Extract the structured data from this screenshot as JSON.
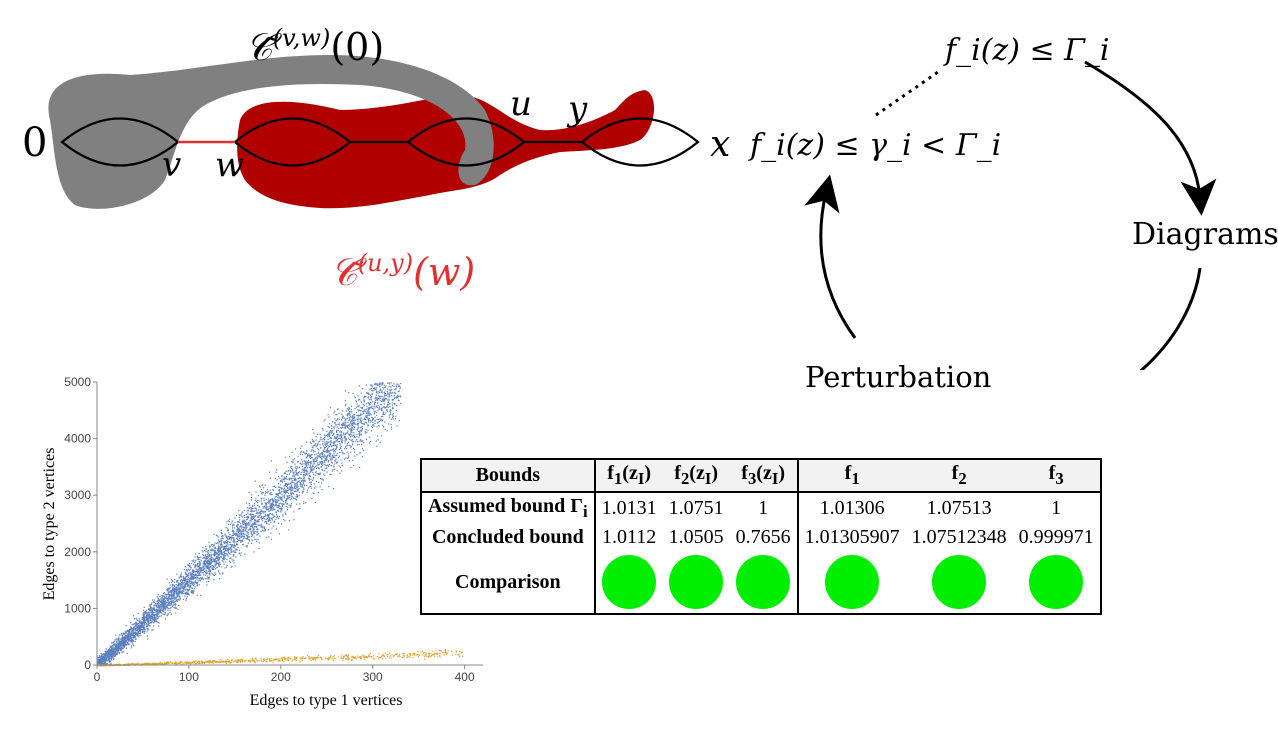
{
  "colors": {
    "gray_blob": "#808080",
    "red_blob": "#b00000",
    "red_label": "#e03030",
    "blue_points": "#5b7fbf",
    "orange_points": "#e0a030",
    "green_bullet": "#00ee00"
  },
  "top_diagram": {
    "label_gray": "𝒞̃",
    "label_gray_sup": "(v,w)",
    "label_gray_arg": "(0)",
    "label_red": "𝒞̃",
    "label_red_sup": "(u,y)",
    "label_red_arg": "(w)",
    "vertex_0": "0",
    "vertex_v": "v",
    "vertex_w": "w",
    "vertex_u": "u",
    "vertex_y": "y",
    "vertex_x": "x"
  },
  "cycle": {
    "top_label": "f_i(z) ≤ Γ_i",
    "left_label": "f_i(z) ≤ γ_i < Γ_i",
    "right_label": "Diagrams",
    "bottom_label": "Perturbation"
  },
  "chart_data": {
    "type": "scatter",
    "xlabel": "Edges to type 1 vertices",
    "ylabel": "Edges to type 2 vertices",
    "xlim": [
      0,
      420
    ],
    "ylim": [
      0,
      5000
    ],
    "xticks": [
      "0",
      "100",
      "200",
      "300",
      "400"
    ],
    "yticks": [
      "0",
      "1000",
      "2000",
      "3000",
      "4000",
      "5000"
    ],
    "series": [
      {
        "color": "blue",
        "trend": [
          [
            0,
            0
          ],
          [
            100,
            1500
          ],
          [
            200,
            3000
          ],
          [
            300,
            4600
          ],
          [
            330,
            5000
          ]
        ],
        "spread": 250
      },
      {
        "color": "orange",
        "trend": [
          [
            0,
            0
          ],
          [
            100,
            50
          ],
          [
            200,
            110
          ],
          [
            300,
            160
          ],
          [
            400,
            220
          ]
        ],
        "spread": 25
      }
    ]
  },
  "table": {
    "headers": [
      "Bounds",
      "f1(zI)",
      "f2(zI)",
      "f3(zI)",
      "f1",
      "f2",
      "f3"
    ],
    "rows": [
      {
        "label": "Assumed bound Γi",
        "values": [
          "1.0131",
          "1.0751",
          "1",
          "1.01306",
          "1.07513",
          "1"
        ]
      },
      {
        "label": "Concluded bound",
        "values": [
          "1.0112",
          "1.0505",
          "0.7656",
          "1.01305907",
          "1.07512348",
          "0.999971"
        ]
      }
    ],
    "comparison_label": "Comparison"
  }
}
